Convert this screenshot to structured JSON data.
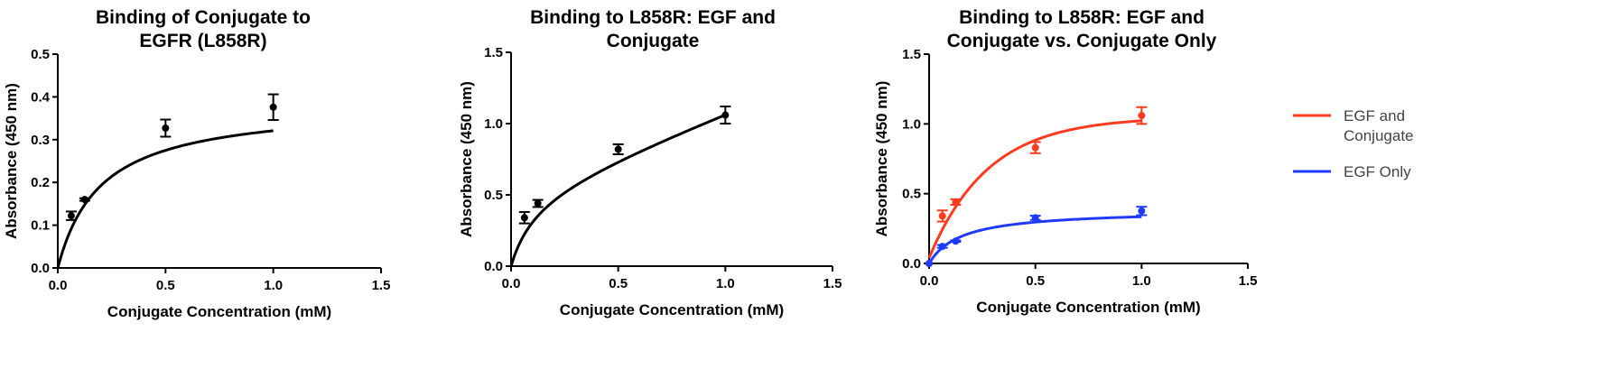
{
  "chart_data": [
    {
      "type": "line",
      "title_lines": [
        "Binding of Conjugate to",
        "EGFR (L858R)"
      ],
      "xlabel": "Conjugate Concentration  (mM)",
      "ylabel": "Absorbance (450 nm)",
      "xlim": [
        0,
        1.5
      ],
      "ylim": [
        0,
        0.5
      ],
      "xticks": [
        0.0,
        0.5,
        1.0,
        1.5
      ],
      "yticks": [
        0.0,
        0.1,
        0.2,
        0.3,
        0.4,
        0.5
      ],
      "xtick_labels": [
        "0.0",
        "0.5",
        "1.0",
        "1.5"
      ],
      "ytick_labels": [
        "0.0",
        "0.1",
        "0.2",
        "0.3",
        "0.4",
        "0.5"
      ],
      "grid": false,
      "series": [
        {
          "color": "#000000",
          "points": [
            {
              "x": 0.0625,
              "y": 0.122,
              "err": 0.01
            },
            {
              "x": 0.125,
              "y": 0.16,
              "err": 0.003
            },
            {
              "x": 0.5,
              "y": 0.327,
              "err": 0.02
            },
            {
              "x": 1.0,
              "y": 0.376,
              "err": 0.03
            }
          ],
          "fit": {
            "model": "one_site",
            "bmax": 0.385,
            "kd": 0.2
          }
        }
      ]
    },
    {
      "type": "line",
      "title_lines": [
        "Binding to L858R: EGF and",
        "Conjugate"
      ],
      "xlabel": "Conjugate Concentration  (mM)",
      "ylabel": "Absorbance (450 nm)",
      "xlim": [
        0,
        1.5
      ],
      "ylim": [
        0,
        1.5
      ],
      "xticks": [
        0.0,
        0.5,
        1.0,
        1.5
      ],
      "yticks": [
        0.0,
        0.5,
        1.0,
        1.5
      ],
      "xtick_labels": [
        "0.0",
        "0.5",
        "1.0",
        "1.5"
      ],
      "ytick_labels": [
        "0.0",
        "0.5",
        "1.0",
        "1.5"
      ],
      "grid": false,
      "series": [
        {
          "color": "#000000",
          "points": [
            {
              "x": 0.0625,
              "y": 0.34,
              "err": 0.04
            },
            {
              "x": 0.125,
              "y": 0.44,
              "err": 0.025
            },
            {
              "x": 0.5,
              "y": 0.82,
              "err": 0.035
            },
            {
              "x": 1.0,
              "y": 1.06,
              "err": 0.06
            }
          ],
          "fit": {
            "model": "one_site_plus_linear",
            "bmax": 0.55,
            "kd": 0.12,
            "ns": 0.57
          }
        }
      ]
    },
    {
      "type": "line",
      "title_lines": [
        "Binding to L858R: EGF and",
        "Conjugate vs. Conjugate Only"
      ],
      "xlabel": "Conjugate Concentration  (mM)",
      "ylabel": "Absorbance (450 nm)",
      "xlim": [
        0,
        1.5
      ],
      "ylim": [
        0,
        1.5
      ],
      "xticks": [
        0.0,
        0.5,
        1.0,
        1.5
      ],
      "yticks": [
        0.0,
        0.5,
        1.0,
        1.5
      ],
      "xtick_labels": [
        "0.0",
        "0.5",
        "1.0",
        "1.5"
      ],
      "ytick_labels": [
        "0.0",
        "0.5",
        "1.0",
        "1.5"
      ],
      "grid": false,
      "legend": "right",
      "series": [
        {
          "name": "EGF and Conjugate",
          "legend_lines": [
            "EGF and",
            "Conjugate"
          ],
          "color": "#ff3b1f",
          "points": [
            {
              "x": 0.0,
              "y": 0.0,
              "err": 0
            },
            {
              "x": 0.0625,
              "y": 0.34,
              "err": 0.04
            },
            {
              "x": 0.125,
              "y": 0.44,
              "err": 0.02
            },
            {
              "x": 0.5,
              "y": 0.83,
              "err": 0.04
            },
            {
              "x": 1.0,
              "y": 1.06,
              "err": 0.06
            }
          ],
          "fit": {
            "model": "exp_assoc",
            "y0": 0.04,
            "plateau": 1.05,
            "k": 3.6
          }
        },
        {
          "name": "EGF Only",
          "legend_lines": [
            "EGF Only"
          ],
          "color": "#1f3bff",
          "points": [
            {
              "x": 0.0,
              "y": 0.0,
              "err": 0
            },
            {
              "x": 0.0625,
              "y": 0.122,
              "err": 0.01
            },
            {
              "x": 0.125,
              "y": 0.16,
              "err": 0.005
            },
            {
              "x": 0.5,
              "y": 0.327,
              "err": 0.015
            },
            {
              "x": 1.0,
              "y": 0.376,
              "err": 0.03
            }
          ],
          "fit": {
            "model": "one_site",
            "bmax": 0.385,
            "kd": 0.15
          }
        }
      ]
    }
  ],
  "colors": {
    "axis": "#000000",
    "legend_text": "#444444"
  }
}
